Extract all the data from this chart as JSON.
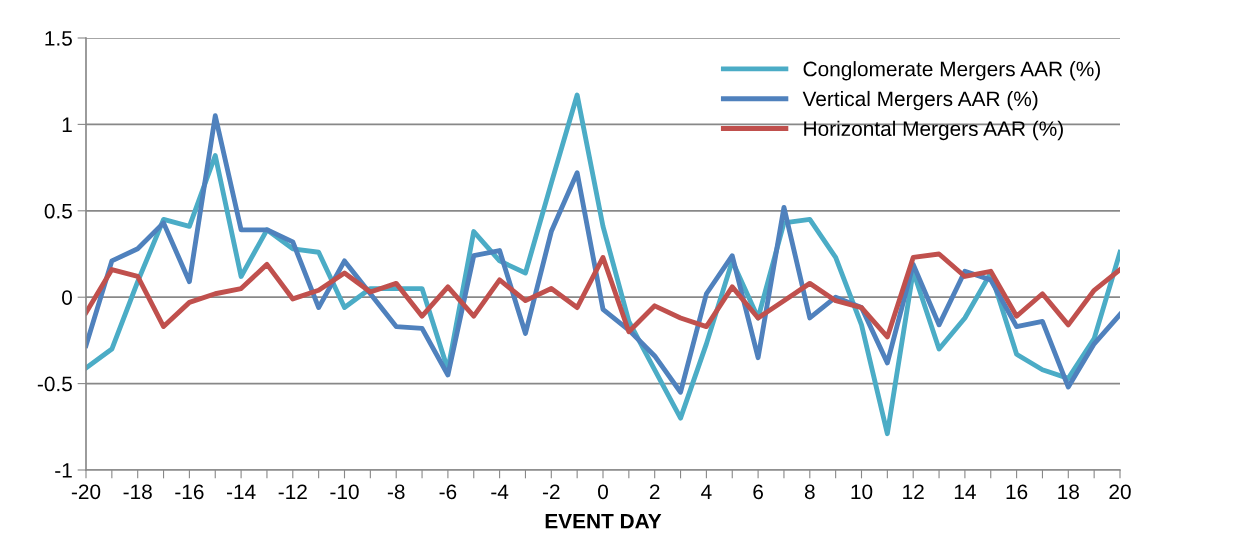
{
  "chart_data": {
    "type": "line",
    "xlabel": "EVENT DAY",
    "x": [
      -20,
      -19,
      -18,
      -17,
      -16,
      -15,
      -14,
      -13,
      -12,
      -11,
      -10,
      -9,
      -8,
      -7,
      -6,
      -5,
      -4,
      -3,
      -2,
      -1,
      0,
      1,
      2,
      3,
      4,
      5,
      6,
      7,
      8,
      9,
      10,
      11,
      12,
      13,
      14,
      15,
      16,
      17,
      18,
      19,
      20
    ],
    "series": [
      {
        "name": "Conglomerate Mergers AAR (%)",
        "color": "#4bacc6",
        "values": [
          -0.41,
          -0.3,
          0.09,
          0.45,
          0.41,
          0.82,
          0.12,
          0.39,
          0.28,
          0.26,
          -0.06,
          0.05,
          0.05,
          0.05,
          -0.42,
          0.38,
          0.21,
          0.14,
          0.66,
          1.17,
          0.41,
          -0.14,
          -0.42,
          -0.7,
          -0.27,
          0.21,
          -0.12,
          0.43,
          0.45,
          0.23,
          -0.16,
          -0.79,
          0.15,
          -0.3,
          -0.12,
          0.14,
          -0.33,
          -0.42,
          -0.47,
          -0.24,
          0.26
        ]
      },
      {
        "name": "Vertical Mergers AAR (%)",
        "color": "#4f81bd",
        "values": [
          -0.28,
          0.21,
          0.28,
          0.43,
          0.09,
          1.05,
          0.39,
          0.39,
          0.32,
          -0.06,
          0.21,
          0.02,
          -0.17,
          -0.18,
          -0.45,
          0.24,
          0.27,
          -0.21,
          0.38,
          0.72,
          -0.07,
          -0.19,
          -0.34,
          -0.55,
          0.02,
          0.24,
          -0.35,
          0.52,
          -0.12,
          0.0,
          -0.06,
          -0.38,
          0.19,
          -0.16,
          0.15,
          0.1,
          -0.17,
          -0.14,
          -0.52,
          -0.27,
          -0.1
        ]
      },
      {
        "name": "Horizontal Mergers AAR (%)",
        "color": "#c0504d",
        "values": [
          -0.09,
          0.16,
          0.12,
          -0.17,
          -0.03,
          0.02,
          0.05,
          0.19,
          -0.01,
          0.04,
          0.14,
          0.03,
          0.08,
          -0.11,
          0.06,
          -0.11,
          0.1,
          -0.02,
          0.05,
          -0.06,
          0.23,
          -0.2,
          -0.05,
          -0.12,
          -0.17,
          0.06,
          -0.12,
          -0.02,
          0.08,
          -0.02,
          -0.06,
          -0.23,
          0.23,
          0.25,
          0.12,
          0.15,
          -0.11,
          0.02,
          -0.16,
          0.04,
          0.16
        ]
      }
    ],
    "xlim": [
      -20,
      20
    ],
    "xticks": [
      -20,
      {
        "value": -19,
        "label": null
      },
      -18,
      {
        "value": -17,
        "label": null
      },
      -16,
      {
        "value": -15,
        "label": null
      },
      -14,
      {
        "value": -13,
        "label": null
      },
      -12,
      {
        "value": -11,
        "label": null
      },
      -10,
      {
        "value": -9,
        "label": null
      },
      -8,
      {
        "value": -7,
        "label": null
      },
      -6,
      {
        "value": -5,
        "label": null
      },
      -4,
      {
        "value": -3,
        "label": null
      },
      -2,
      {
        "value": -1,
        "label": null
      },
      0,
      {
        "value": 1,
        "label": null
      },
      2,
      {
        "value": 3,
        "label": null
      },
      4,
      {
        "value": 5,
        "label": null
      },
      6,
      {
        "value": 7,
        "label": null
      },
      8,
      {
        "value": 9,
        "label": null
      },
      10,
      {
        "value": 11,
        "label": null
      },
      12,
      {
        "value": 13,
        "label": null
      },
      14,
      {
        "value": 15,
        "label": null
      },
      16,
      {
        "value": 17,
        "label": null
      },
      18,
      {
        "value": 19,
        "label": null
      },
      20
    ],
    "ylim": [
      -1,
      1.5
    ],
    "yticks": [
      -1,
      -0.5,
      0,
      0.5,
      1,
      1.5
    ],
    "grid": "y",
    "legend": "top right",
    "marker": "none",
    "line_style": "solid"
  }
}
